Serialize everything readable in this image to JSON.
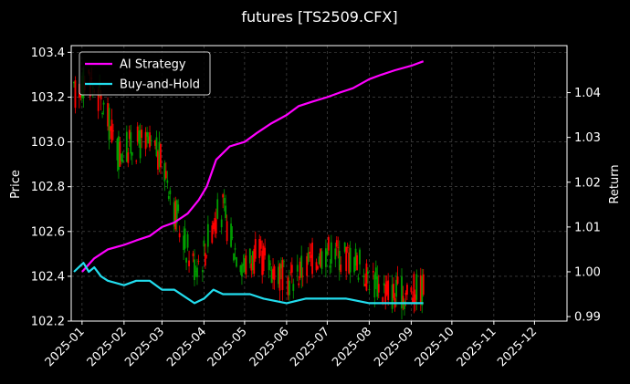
{
  "chart_data": {
    "type": "candlestick+line",
    "title": "futures [TS2509.CFX]",
    "xlabel": "",
    "ylabel_left": "Price",
    "ylabel_right": "Return",
    "x_ticks": [
      "2025-01",
      "2025-02",
      "2025-03",
      "2025-04",
      "2025-05",
      "2025-06",
      "2025-07",
      "2025-08",
      "2025-09",
      "2025-10",
      "2025-11",
      "2025-12"
    ],
    "xlim": [
      "2024-12-24",
      "2025-12-25"
    ],
    "ylim_left": [
      102.2,
      103.43
    ],
    "y_ticks_left": [
      102.2,
      102.4,
      102.6,
      102.8,
      103.0,
      103.2,
      103.4
    ],
    "ylim_right": [
      0.989,
      1.0505
    ],
    "y_ticks_right": [
      0.99,
      1.0,
      1.01,
      1.02,
      1.03,
      1.04
    ],
    "grid": true,
    "legend_position": "top-left",
    "colors": {
      "up": "#00a000",
      "down": "#ff0000",
      "ai": "#ff00ff",
      "bh": "#22ddee",
      "bg": "#000000"
    },
    "series": [
      {
        "name": "AI Strategy",
        "points": [
          [
            "2025-01-01",
            1.0
          ],
          [
            "2025-01-10",
            1.003
          ],
          [
            "2025-01-20",
            1.005
          ],
          [
            "2025-02-01",
            1.006
          ],
          [
            "2025-02-10",
            1.007
          ],
          [
            "2025-02-20",
            1.008
          ],
          [
            "2025-03-01",
            1.01
          ],
          [
            "2025-03-10",
            1.011
          ],
          [
            "2025-03-20",
            1.013
          ],
          [
            "2025-03-28",
            1.016
          ],
          [
            "2025-04-03",
            1.019
          ],
          [
            "2025-04-10",
            1.025
          ],
          [
            "2025-04-20",
            1.028
          ],
          [
            "2025-05-01",
            1.029
          ],
          [
            "2025-05-10",
            1.031
          ],
          [
            "2025-05-20",
            1.033
          ],
          [
            "2025-06-01",
            1.035
          ],
          [
            "2025-06-10",
            1.037
          ],
          [
            "2025-06-20",
            1.038
          ],
          [
            "2025-07-01",
            1.039
          ],
          [
            "2025-07-10",
            1.04
          ],
          [
            "2025-07-20",
            1.041
          ],
          [
            "2025-08-01",
            1.043
          ],
          [
            "2025-08-10",
            1.044
          ],
          [
            "2025-08-20",
            1.045
          ],
          [
            "2025-09-01",
            1.046
          ],
          [
            "2025-09-10",
            1.047
          ]
        ]
      },
      {
        "name": "Buy-and-Hold",
        "points": [
          [
            "2024-12-26",
            1.0
          ],
          [
            "2025-01-02",
            1.002
          ],
          [
            "2025-01-06",
            1.0
          ],
          [
            "2025-01-10",
            1.001
          ],
          [
            "2025-01-15",
            0.999
          ],
          [
            "2025-01-20",
            0.998
          ],
          [
            "2025-02-01",
            0.997
          ],
          [
            "2025-02-10",
            0.998
          ],
          [
            "2025-02-20",
            0.998
          ],
          [
            "2025-03-01",
            0.996
          ],
          [
            "2025-03-10",
            0.996
          ],
          [
            "2025-03-20",
            0.994
          ],
          [
            "2025-03-25",
            0.993
          ],
          [
            "2025-04-01",
            0.994
          ],
          [
            "2025-04-08",
            0.996
          ],
          [
            "2025-04-15",
            0.995
          ],
          [
            "2025-04-25",
            0.995
          ],
          [
            "2025-05-05",
            0.995
          ],
          [
            "2025-05-15",
            0.994
          ],
          [
            "2025-06-01",
            0.993
          ],
          [
            "2025-06-15",
            0.994
          ],
          [
            "2025-07-01",
            0.994
          ],
          [
            "2025-07-15",
            0.994
          ],
          [
            "2025-08-01",
            0.993
          ],
          [
            "2025-08-15",
            0.993
          ],
          [
            "2025-09-01",
            0.993
          ],
          [
            "2025-09-10",
            0.993
          ]
        ]
      }
    ],
    "price_path": [
      [
        "2024-12-26",
        103.2
      ],
      [
        "2025-01-05",
        103.3
      ],
      [
        "2025-01-12",
        103.22
      ],
      [
        "2025-01-20",
        103.1
      ],
      [
        "2025-01-28",
        102.95
      ],
      [
        "2025-02-05",
        102.98
      ],
      [
        "2025-02-15",
        103.0
      ],
      [
        "2025-02-25",
        102.95
      ],
      [
        "2025-03-05",
        102.85
      ],
      [
        "2025-03-10",
        102.7
      ],
      [
        "2025-03-18",
        102.55
      ],
      [
        "2025-03-25",
        102.45
      ],
      [
        "2025-04-01",
        102.5
      ],
      [
        "2025-04-08",
        102.65
      ],
      [
        "2025-04-15",
        102.7
      ],
      [
        "2025-04-22",
        102.55
      ],
      [
        "2025-05-01",
        102.45
      ],
      [
        "2025-05-10",
        102.5
      ],
      [
        "2025-05-20",
        102.45
      ],
      [
        "2025-06-01",
        102.38
      ],
      [
        "2025-06-10",
        102.42
      ],
      [
        "2025-06-20",
        102.48
      ],
      [
        "2025-07-01",
        102.52
      ],
      [
        "2025-07-10",
        102.5
      ],
      [
        "2025-07-20",
        102.48
      ],
      [
        "2025-08-01",
        102.4
      ],
      [
        "2025-08-10",
        102.35
      ],
      [
        "2025-08-20",
        102.32
      ],
      [
        "2025-09-01",
        102.33
      ],
      [
        "2025-09-10",
        102.35
      ]
    ]
  }
}
